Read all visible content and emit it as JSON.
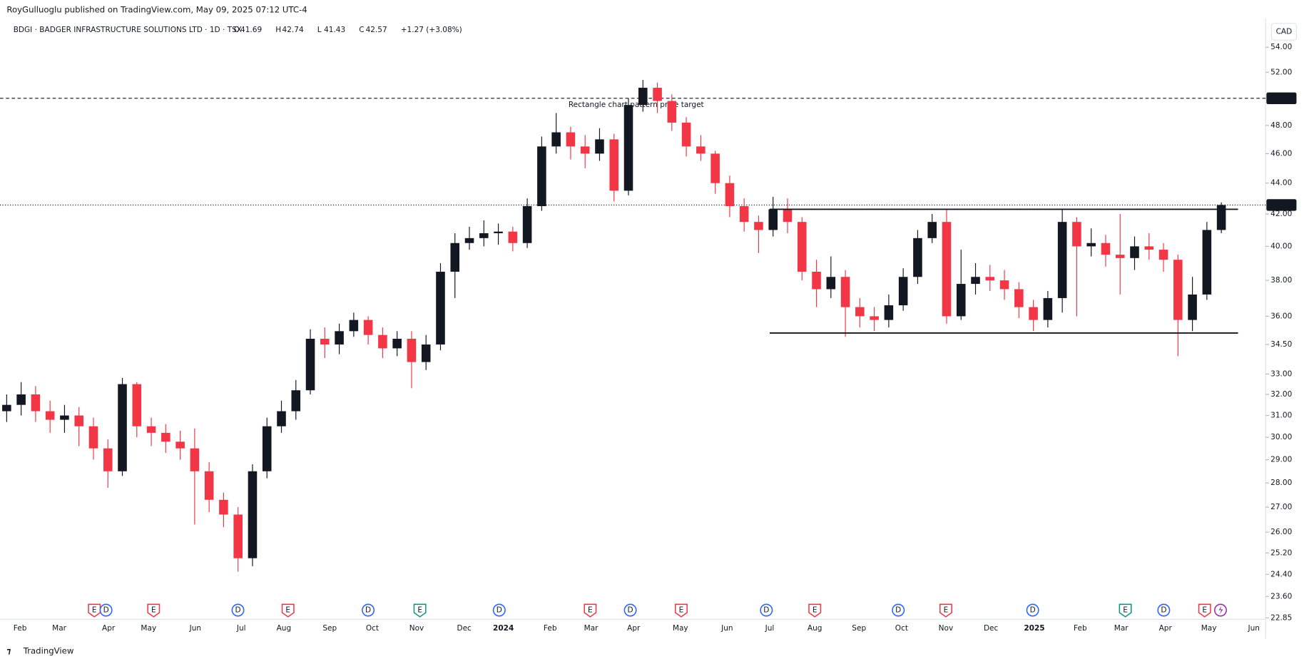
{
  "header": {
    "publisher": "RoyGulluoglu published on TradingView.com, May 09, 2025 07:12 UTC-4"
  },
  "chart_data": {
    "type": "candlestick",
    "symbol": "BDGI · BADGER INFRASTRUCTURE SOLUTIONS LTD · 1D · TSX",
    "ohlc": [
      {
        "label": "O",
        "value": 41.69
      },
      {
        "label": "H",
        "value": 42.74
      },
      {
        "label": "L",
        "value": 41.43
      },
      {
        "label": "C",
        "value": 42.57
      }
    ],
    "change": "+1.27 (+3.08%)",
    "currency": "CAD",
    "log_scale": true,
    "up_color": "#131722",
    "down_color": "#f23645",
    "open": [
      31.2,
      31.5,
      32.0,
      31.2,
      30.8,
      31.0,
      30.5,
      29.5,
      28.5,
      32.5,
      30.5,
      30.2,
      29.8,
      29.5,
      28.5,
      27.3,
      26.7,
      25.0,
      28.5,
      30.5,
      31.2,
      32.2,
      34.8,
      34.5,
      35.2,
      35.8,
      35.0,
      34.3,
      34.8,
      33.6,
      34.5,
      38.5,
      40.2,
      40.5,
      40.8,
      40.9,
      40.2,
      42.5,
      46.5,
      47.5,
      46.5,
      46.0,
      47.0,
      43.5,
      49.5,
      50.8,
      49.8,
      48.2,
      46.5,
      46.0,
      44.0,
      42.5,
      41.5,
      41.0,
      42.3,
      41.5,
      38.5,
      37.5,
      38.2,
      36.5,
      36.0,
      35.8,
      36.6,
      38.2,
      40.5,
      41.5,
      36.0,
      37.8,
      38.2,
      38.0,
      37.5,
      36.5,
      35.8,
      37.0,
      41.5,
      40.0,
      40.2,
      39.5,
      39.3,
      40.0,
      39.8,
      39.2,
      35.8,
      37.2,
      41.0
    ],
    "high": [
      32.0,
      32.6,
      32.4,
      31.7,
      31.5,
      31.4,
      30.9,
      29.9,
      32.8,
      32.6,
      30.9,
      30.6,
      30.3,
      30.4,
      28.9,
      27.6,
      27.0,
      28.8,
      30.9,
      31.7,
      32.7,
      35.3,
      35.4,
      35.6,
      36.2,
      36.0,
      35.4,
      35.2,
      35.2,
      35.0,
      39.0,
      40.8,
      41.2,
      41.6,
      41.4,
      41.2,
      43.0,
      47.2,
      48.9,
      47.9,
      47.3,
      47.8,
      47.4,
      50.0,
      51.4,
      51.2,
      50.3,
      48.6,
      47.3,
      46.2,
      44.5,
      43.0,
      41.9,
      43.1,
      43.0,
      41.8,
      39.2,
      39.4,
      38.6,
      37.0,
      36.5,
      37.2,
      38.7,
      41.0,
      42.0,
      42.3,
      39.8,
      39.0,
      38.9,
      38.6,
      37.9,
      36.9,
      37.4,
      42.3,
      41.8,
      41.1,
      40.7,
      42.0,
      40.6,
      40.8,
      40.2,
      39.5,
      38.2,
      41.5,
      42.74
    ],
    "low": [
      30.7,
      31.0,
      30.7,
      30.2,
      30.2,
      29.6,
      29.0,
      27.8,
      28.3,
      30.0,
      29.6,
      29.3,
      29.0,
      26.3,
      26.8,
      26.2,
      24.5,
      24.7,
      28.2,
      30.2,
      30.8,
      32.0,
      33.8,
      34.0,
      34.9,
      34.5,
      33.8,
      33.9,
      32.3,
      33.2,
      34.2,
      37.0,
      39.8,
      40.0,
      40.1,
      39.7,
      39.9,
      42.2,
      46.0,
      45.6,
      45.0,
      45.5,
      42.8,
      43.2,
      49.0,
      48.9,
      47.6,
      45.8,
      45.5,
      43.3,
      41.8,
      40.9,
      39.6,
      40.6,
      40.8,
      38.0,
      36.5,
      37.0,
      34.9,
      35.4,
      35.2,
      35.4,
      36.3,
      37.8,
      40.2,
      35.6,
      35.8,
      37.2,
      37.4,
      36.9,
      35.9,
      35.2,
      35.4,
      36.2,
      36.0,
      39.4,
      38.8,
      37.2,
      38.6,
      39.2,
      38.5,
      33.9,
      35.2,
      36.9,
      40.8
    ],
    "close": [
      31.5,
      32.0,
      31.2,
      30.8,
      31.0,
      30.5,
      29.5,
      28.5,
      32.5,
      30.5,
      30.2,
      29.8,
      29.5,
      28.5,
      27.3,
      26.7,
      25.0,
      28.5,
      30.5,
      31.2,
      32.2,
      34.8,
      34.5,
      35.2,
      35.8,
      35.0,
      34.3,
      34.8,
      33.6,
      34.5,
      38.5,
      40.2,
      40.5,
      40.8,
      40.9,
      40.2,
      42.5,
      46.5,
      47.5,
      46.5,
      46.0,
      47.0,
      43.5,
      49.5,
      50.8,
      49.8,
      48.2,
      46.5,
      46.0,
      44.0,
      42.5,
      41.5,
      41.0,
      42.3,
      41.5,
      38.5,
      37.5,
      38.2,
      36.5,
      36.0,
      35.8,
      36.6,
      38.2,
      40.5,
      41.5,
      36.0,
      37.8,
      38.2,
      38.0,
      37.5,
      36.5,
      35.8,
      37.0,
      41.5,
      40.0,
      40.2,
      39.5,
      39.3,
      40.0,
      39.8,
      39.2,
      35.8,
      37.2,
      41.0,
      42.57
    ],
    "ylim": [
      22.8,
      56.4
    ],
    "yticks": [
      {
        "value": 54,
        "label": "54.00"
      },
      {
        "value": 52,
        "label": "52.00"
      },
      {
        "value": 48,
        "label": "48.00"
      },
      {
        "value": 46,
        "label": "46.00"
      },
      {
        "value": 44,
        "label": "44.00"
      },
      {
        "value": 42,
        "label": "42.00"
      },
      {
        "value": 40,
        "label": "40.00"
      },
      {
        "value": 38,
        "label": "38.00"
      },
      {
        "value": 36,
        "label": "36.00"
      },
      {
        "value": 34.5,
        "label": "34.50"
      },
      {
        "value": 33,
        "label": "33.00"
      },
      {
        "value": 32,
        "label": "32.00"
      },
      {
        "value": 31,
        "label": "31.00"
      },
      {
        "value": 30,
        "label": "30.00"
      },
      {
        "value": 29,
        "label": "29.00"
      },
      {
        "value": 28,
        "label": "28.00"
      },
      {
        "value": 27,
        "label": "27.00"
      },
      {
        "value": 26,
        "label": "26.00"
      },
      {
        "value": 25.2,
        "label": "25.20"
      },
      {
        "value": 24.4,
        "label": "24.40"
      },
      {
        "value": 23.6,
        "label": "23.60"
      },
      {
        "value": 22.85,
        "label": "22.85"
      }
    ],
    "xticks": [
      "Feb",
      "Mar",
      "Apr",
      "May",
      "Jun",
      "Jul",
      "Aug",
      "Sep",
      "Oct",
      "Nov",
      "Dec",
      "2024",
      "Feb",
      "Mar",
      "Apr",
      "May",
      "Jun",
      "Jul",
      "Aug",
      "Sep",
      "Oct",
      "Nov",
      "Dec",
      "2025",
      "Feb",
      "Mar",
      "Apr",
      "May",
      "Jun"
    ],
    "price_lines": [
      {
        "value": 50,
        "label": "50.00",
        "style": "dashed"
      },
      {
        "value": 42.57,
        "label": "42.57",
        "style": "dotted"
      }
    ],
    "rectangle": {
      "top": 42.3,
      "bottom": 35.1
    },
    "annotation": "Rectangle chart pattern price target",
    "events": [
      {
        "label": "E",
        "color": "#f23645"
      },
      {
        "label": "D",
        "color": "#2962ff"
      },
      {
        "label": "E",
        "color": "#f23645"
      },
      {
        "label": "D",
        "color": "#2962ff"
      },
      {
        "label": "E",
        "color": "#f23645"
      },
      {
        "label": "D",
        "color": "#2962ff"
      },
      {
        "label": "E",
        "color": "#089981"
      },
      {
        "label": "D",
        "color": "#2962ff"
      },
      {
        "label": "E",
        "color": "#f23645"
      },
      {
        "label": "D",
        "color": "#2962ff"
      },
      {
        "label": "E",
        "color": "#f23645"
      },
      {
        "label": "D",
        "color": "#2962ff"
      },
      {
        "label": "E",
        "color": "#f23645"
      },
      {
        "label": "D",
        "color": "#2962ff"
      },
      {
        "label": "E",
        "color": "#f23645"
      },
      {
        "label": "D",
        "color": "#2962ff"
      },
      {
        "label": "E",
        "color": "#089981"
      },
      {
        "label": "D",
        "color": "#2962ff"
      },
      {
        "label": "E",
        "color": "#f23645"
      }
    ]
  },
  "footer": {
    "brand": "TradingView"
  }
}
